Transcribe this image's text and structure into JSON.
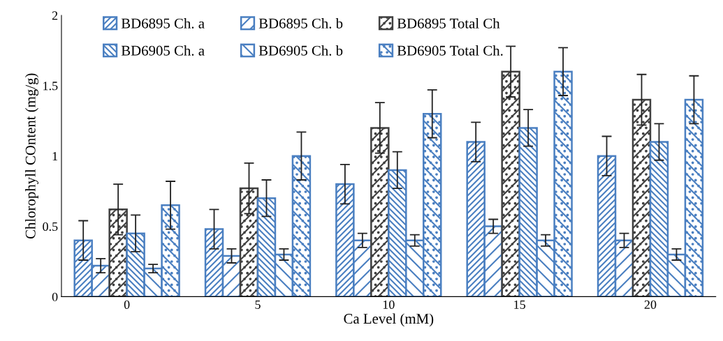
{
  "chart_data": {
    "type": "bar",
    "xlabel": "Ca Level (mM)",
    "ylabel": "Chlorophyll COntent (mg/g)",
    "categories": [
      "0",
      "5",
      "10",
      "15",
      "20"
    ],
    "series": [
      {
        "name": "BD6895 Ch. a",
        "color": "#4a7fc1",
        "values": [
          0.4,
          0.48,
          0.8,
          1.1,
          1.0
        ],
        "errors": [
          0.14,
          0.14,
          0.14,
          0.14,
          0.14
        ]
      },
      {
        "name": "BD6895 Ch. b",
        "color": "#4a7fc1",
        "values": [
          0.22,
          0.29,
          0.4,
          0.5,
          0.4
        ],
        "errors": [
          0.05,
          0.05,
          0.05,
          0.05,
          0.05
        ]
      },
      {
        "name": "BD6895 Total Ch",
        "color": "#404040",
        "values": [
          0.62,
          0.77,
          1.2,
          1.6,
          1.4
        ],
        "errors": [
          0.18,
          0.18,
          0.18,
          0.18,
          0.18
        ]
      },
      {
        "name": "BD6905 Ch. a",
        "color": "#4a7fc1",
        "values": [
          0.45,
          0.7,
          0.9,
          1.2,
          1.1
        ],
        "errors": [
          0.13,
          0.13,
          0.13,
          0.13,
          0.13
        ]
      },
      {
        "name": "BD6905 Ch. b",
        "color": "#4a7fc1",
        "values": [
          0.2,
          0.3,
          0.4,
          0.4,
          0.3
        ],
        "errors": [
          0.03,
          0.04,
          0.04,
          0.04,
          0.04
        ]
      },
      {
        "name": "BD6905 Total Ch.",
        "color": "#4a7fc1",
        "values": [
          0.65,
          1.0,
          1.3,
          1.6,
          1.4
        ],
        "errors": [
          0.17,
          0.17,
          0.17,
          0.17,
          0.17
        ]
      }
    ],
    "ylim": [
      0,
      2
    ],
    "yticks": [
      0,
      0.5,
      1,
      1.5,
      2
    ],
    "grid": false,
    "legend": "top"
  }
}
